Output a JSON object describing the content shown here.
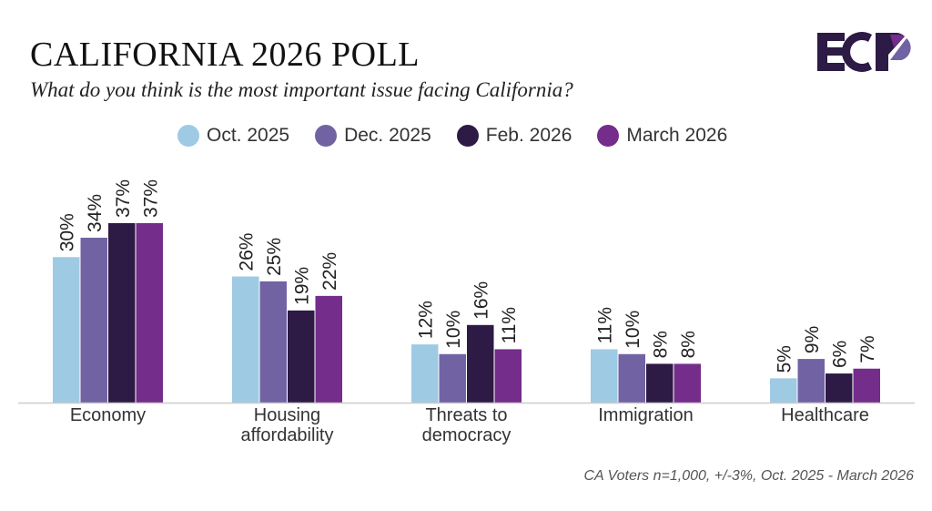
{
  "header": {
    "title": "CALIFORNIA 2026 POLL",
    "subtitle": "What do you think is the most important issue facing California?",
    "logo_text": "ECP"
  },
  "footnote": "CA Voters n=1,000, +/-3%, Oct. 2025 - March 2026",
  "chart_data": {
    "type": "bar",
    "title": "CALIFORNIA 2026 POLL",
    "categories": [
      [
        "Economy"
      ],
      [
        "Housing",
        "affordability"
      ],
      [
        "Threats to",
        "democracy"
      ],
      [
        "Immigration"
      ],
      [
        "Healthcare"
      ]
    ],
    "series": [
      {
        "name": "Oct. 2025",
        "color": "#9ecae4",
        "values": [
          30,
          26,
          12,
          11,
          5
        ]
      },
      {
        "name": "Dec. 2025",
        "color": "#7163a3",
        "values": [
          34,
          25,
          10,
          10,
          9
        ]
      },
      {
        "name": "Feb. 2026",
        "color": "#2d1a45",
        "values": [
          37,
          19,
          16,
          8,
          6
        ]
      },
      {
        "name": "March 2026",
        "color": "#742d8a",
        "values": [
          37,
          22,
          11,
          8,
          7
        ]
      }
    ],
    "value_suffix": "%",
    "ylim": [
      0,
      37
    ],
    "grid": false,
    "legend": "top"
  }
}
